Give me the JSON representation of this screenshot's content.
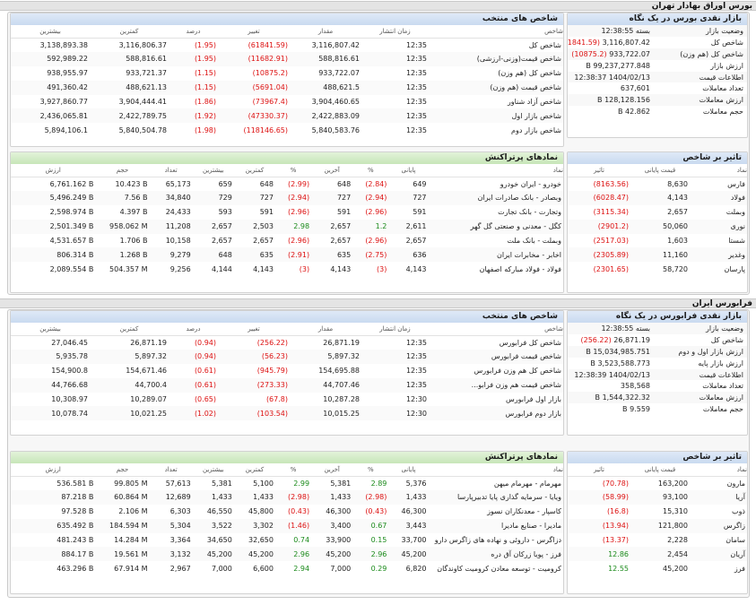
{
  "tehran": {
    "section_title": "بورس اوراق بهادار تهران",
    "summary": {
      "title": "بازار نقدی بورس در یک نگاه",
      "rows": [
        {
          "label": "وضعیت بازار",
          "value": "بسته 12:38:55",
          "delta": ""
        },
        {
          "label": "شاخص کل",
          "value": "3,116,807.42",
          "delta": "(61841.59)"
        },
        {
          "label": "شاخص کل (هم وزن)",
          "value": "933,722.07",
          "delta": "(10875.2)"
        },
        {
          "label": "ارزش بازار",
          "value": "99,237,277.848 B",
          "delta": ""
        },
        {
          "label": "اطلاعات قیمت",
          "value": "1404/02/13 12:38:37",
          "delta": ""
        },
        {
          "label": "تعداد معاملات",
          "value": "637,601",
          "delta": ""
        },
        {
          "label": "ارزش معاملات",
          "value": "128,128.156 B",
          "delta": ""
        },
        {
          "label": "حجم معاملات",
          "value": "42.862 B",
          "delta": ""
        }
      ]
    },
    "indices": {
      "title": "شاخص های منتخب",
      "headers": [
        "شاخص",
        "زمان انتشار",
        "مقدار",
        "تغییر",
        "درصد",
        "کمترین",
        "بیشترین"
      ],
      "rows": [
        [
          "شاخص کل",
          "12:35",
          "3,116,807.42",
          "(61841.59)",
          "(1.95)",
          "3,116,806.37",
          "3,138,893.38"
        ],
        [
          "شاخص قیمت(وزنی-ارزشی)",
          "12:35",
          "588,816.61",
          "(11682.91)",
          "(1.95)",
          "588,816.61",
          "592,989.22"
        ],
        [
          "شاخص کل (هم وزن)",
          "12:35",
          "933,722.07",
          "(10875.2)",
          "(1.15)",
          "933,721.37",
          "938,955.97"
        ],
        [
          "شاخص قیمت (هم وزن)",
          "12:35",
          "488,621.5",
          "(5691.04)",
          "(1.15)",
          "488,621.13",
          "491,360.42"
        ],
        [
          "شاخص آزاد شناور",
          "12:35",
          "3,904,460.65",
          "(73967.4)",
          "(1.86)",
          "3,904,444.41",
          "3,927,860.77"
        ],
        [
          "شاخص بازار اول",
          "12:35",
          "2,422,883.09",
          "(47330.37)",
          "(1.92)",
          "2,422,789.75",
          "2,436,065.81"
        ],
        [
          "شاخص بازار دوم",
          "12:35",
          "5,840,583.76",
          "(118146.65)",
          "(1.98)",
          "5,840,504.78",
          "5,894,106.1"
        ]
      ]
    },
    "impact": {
      "title": "تاثیر بر شاخص",
      "headers": [
        "نماد",
        "قیمت پایانی",
        "تاثیر"
      ],
      "rows": [
        [
          "فارس",
          "8,630",
          "(8163.56)"
        ],
        [
          "فولاد",
          "4,143",
          "(6028.47)"
        ],
        [
          "وبملت",
          "2,657",
          "(3115.34)"
        ],
        [
          "نوری",
          "50,060",
          "(2901.2)"
        ],
        [
          "شستا",
          "1,603",
          "(2517.03)"
        ],
        [
          "وغدیر",
          "11,160",
          "(2305.89)"
        ],
        [
          "پارسان",
          "58,720",
          "(2301.65)"
        ]
      ]
    },
    "active": {
      "title": "نمادهای پرتراکنش",
      "headers": [
        "نماد",
        "پایانی",
        "%",
        "آخرین",
        "%",
        "کمترین",
        "بیشترین",
        "تعداد",
        "حجم",
        "ارزش"
      ],
      "rows": [
        [
          "خودرو - ایران خودرو",
          "649",
          "(2.84)",
          "648",
          "(2.99)",
          "648",
          "659",
          "65,173",
          "10.423 B",
          "6,761.162 B"
        ],
        [
          "وبصادر - بانک صادرات ایران",
          "727",
          "(2.94)",
          "727",
          "(2.94)",
          "727",
          "729",
          "34,840",
          "7.56 B",
          "5,496.249 B"
        ],
        [
          "وتجارت - بانک تجارت",
          "591",
          "(2.96)",
          "591",
          "(2.96)",
          "591",
          "593",
          "24,433",
          "4.397 B",
          "2,598.974 B"
        ],
        [
          "کگل - معدنی و صنعتی گل گهر",
          "2,611",
          "1.2",
          "2,657",
          "2.98",
          "2,503",
          "2,657",
          "11,208",
          "958.062 M",
          "2,501.349 B"
        ],
        [
          "وبملت - بانک ملت",
          "2,657",
          "(2.96)",
          "2,657",
          "(2.96)",
          "2,657",
          "2,657",
          "10,158",
          "1.706 B",
          "4,531.657 B"
        ],
        [
          "اخابر - مخابرات ایران",
          "636",
          "(2.75)",
          "635",
          "(2.91)",
          "635",
          "648",
          "9,279",
          "1.268 B",
          "806.314 B"
        ],
        [
          "فولاد - فولاد مبارکه اصفهان",
          "4,143",
          "(3)",
          "4,143",
          "(3)",
          "4,143",
          "4,144",
          "9,256",
          "504.357 M",
          "2,089.554 B"
        ]
      ]
    }
  },
  "farabourse": {
    "section_title": "فرابورس ایران",
    "summary": {
      "title": "بازار نقدی فرابورس در یک نگاه",
      "rows": [
        {
          "label": "وضعیت بازار",
          "value": "بسته 12:38:55",
          "delta": ""
        },
        {
          "label": "شاخص کل",
          "value": "26,871.19",
          "delta": "(256.22)"
        },
        {
          "label": "ارزش بازار اول و دوم",
          "value": "15,034,985.751 B",
          "delta": ""
        },
        {
          "label": "ارزش بازار پایه",
          "value": "3,523,588.773 B",
          "delta": ""
        },
        {
          "label": "اطلاعات قیمت",
          "value": "1404/02/13 12:38:39",
          "delta": ""
        },
        {
          "label": "تعداد معاملات",
          "value": "358,568",
          "delta": ""
        },
        {
          "label": "ارزش معاملات",
          "value": "1,544,322.32 B",
          "delta": ""
        },
        {
          "label": "حجم معاملات",
          "value": "9.559 B",
          "delta": ""
        }
      ]
    },
    "indices": {
      "title": "شاخص های منتخب",
      "headers": [
        "شاخص",
        "زمان انتشار",
        "مقدار",
        "تغییر",
        "درصد",
        "کمترین",
        "بیشترین"
      ],
      "rows": [
        [
          "شاخص کل فرابورس",
          "12:35",
          "26,871.19",
          "(256.22)",
          "(0.94)",
          "26,871.19",
          "27,046.45"
        ],
        [
          "شاخص قیمت فرابورس",
          "12:35",
          "5,897.32",
          "(56.23)",
          "(0.94)",
          "5,897.32",
          "5,935.78"
        ],
        [
          "شاخص کل هم وزن فرابورس",
          "12:35",
          "154,695.88",
          "(945.79)",
          "(0.61)",
          "154,671.46",
          "154,900.8"
        ],
        [
          "شاخص قیمت هم وزن فرابو...",
          "12:35",
          "44,707.46",
          "(273.33)",
          "(0.61)",
          "44,700.4",
          "44,766.68"
        ],
        [
          "بازار اول فرابورس",
          "12:30",
          "10,287.28",
          "(67.8)",
          "(0.65)",
          "10,289.07",
          "10,308.97"
        ],
        [
          "بازار دوم فرابورس",
          "12:30",
          "10,015.25",
          "(103.54)",
          "(1.02)",
          "10,021.25",
          "10,078.74"
        ]
      ]
    },
    "impact": {
      "title": "تاثیر بر شاخص",
      "headers": [
        "نماد",
        "قیمت پایانی",
        "تاثیر"
      ],
      "rows": [
        [
          "مارون",
          "163,200",
          "(70.78)"
        ],
        [
          "آریا",
          "93,100",
          "(58.99)"
        ],
        [
          "ذوب",
          "15,310",
          "(16.8)"
        ],
        [
          "زاگرس",
          "121,800",
          "(13.94)"
        ],
        [
          "سامان",
          "2,228",
          "(13.37)"
        ],
        [
          "آریان",
          "2,454",
          "12.86"
        ],
        [
          "فرز",
          "45,200",
          "12.55"
        ]
      ]
    },
    "active": {
      "title": "نمادهای پرتراکنش",
      "headers": [
        "نماد",
        "پایانی",
        "%",
        "آخرین",
        "%",
        "کمترین",
        "بیشترین",
        "تعداد",
        "حجم",
        "ارزش"
      ],
      "rows": [
        [
          "مهرمام - مهرمام میهن",
          "5,376",
          "2.89",
          "5,381",
          "2.99",
          "5,100",
          "5,381",
          "57,613",
          "99.805 M",
          "536.581 B"
        ],
        [
          "ویایا - سرمایه گذاری پایا تدبیرپارسا",
          "1,433",
          "(2.98)",
          "1,433",
          "(2.98)",
          "1,433",
          "1,433",
          "12,689",
          "60.864 M",
          "87.218 B"
        ],
        [
          "کاسپار - معدنکاران نسوز",
          "46,300",
          "(0.43)",
          "46,300",
          "(0.43)",
          "45,800",
          "46,550",
          "6,303",
          "2.106 M",
          "97.528 B"
        ],
        [
          "ماديرا - صنایع ماديرا",
          "3,443",
          "0.67",
          "3,400",
          "(1.46)",
          "3,302",
          "3,522",
          "5,304",
          "184.594 M",
          "635.492 B"
        ],
        [
          "دزاگرس - داروئی و نهاده های زاگرس دارو",
          "33,700",
          "0.15",
          "33,900",
          "0.74",
          "32,650",
          "34,650",
          "3,364",
          "14.284 M",
          "481.243 B"
        ],
        [
          "فرز - پویا زرکان آق دره",
          "45,200",
          "2.96",
          "45,200",
          "2.96",
          "45,200",
          "45,200",
          "3,132",
          "19.561 M",
          "884.17 B"
        ],
        [
          "کرومیت - توسعه معادن کرومیت کاوندگان",
          "6,820",
          "0.29",
          "7,000",
          "2.94",
          "6,600",
          "7,000",
          "2,967",
          "67.914 M",
          "463.296 B"
        ]
      ]
    }
  }
}
